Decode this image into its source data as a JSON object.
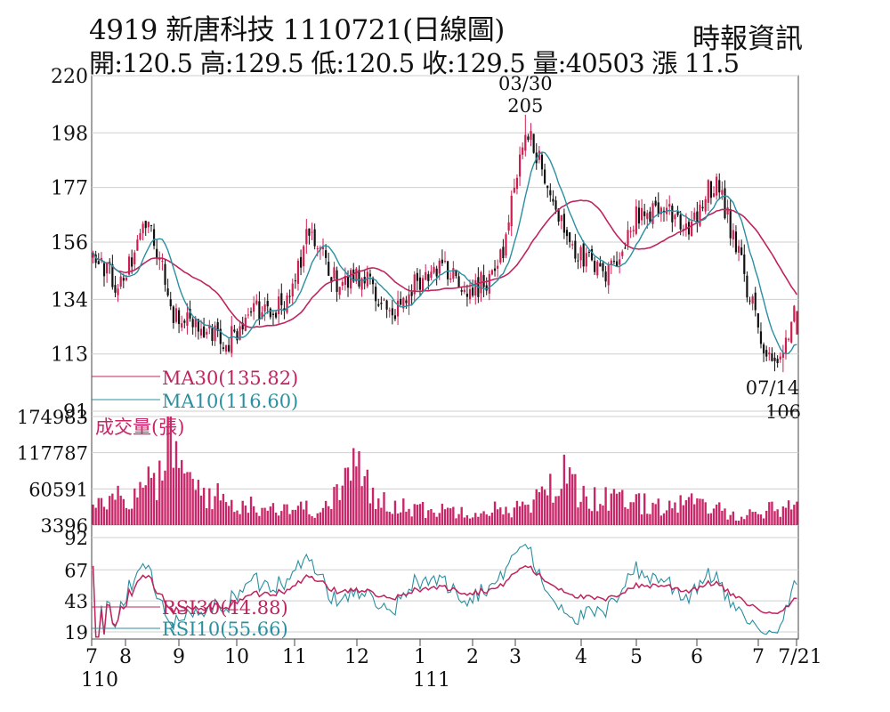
{
  "header": {
    "title": "4919  新唐科技 1110721(日線圖)",
    "quote": "開:120.5 高:129.5 低:120.5 收:129.5 量:40503 漲 11.5",
    "source": "時報資訊"
  },
  "colors": {
    "up": "#cc1f4f",
    "down": "#111111",
    "ma30": "#c0245e",
    "ma10": "#2a8fa0",
    "volume": "#c82668",
    "rsi30": "#c0245e",
    "rsi10": "#2a8fa0",
    "grid": "#cfcfcf",
    "frame": "#444444"
  },
  "chart_data": [
    {
      "type": "candlestick",
      "panel": "price",
      "y_ticks": [
        220,
        198,
        177,
        156,
        134,
        113,
        91
      ],
      "ylim": [
        91,
        220
      ],
      "grid": true,
      "x_ticks": [
        "7",
        "8",
        "9",
        "10",
        "11",
        "12",
        "1",
        "2",
        "3",
        "4",
        "5",
        "6",
        "7",
        "7/21"
      ],
      "x_tick_sublabels": [
        {
          "tick": "7",
          "text": "110"
        },
        {
          "tick": "1",
          "text": "111"
        }
      ],
      "legend": [
        {
          "name": "MA30",
          "value": "MA30(135.82)",
          "color": "#c0245e"
        },
        {
          "name": "MA10",
          "value": "MA10(116.60)",
          "color": "#2a8fa0"
        }
      ],
      "annotations": [
        {
          "date": "03/30",
          "value": 205,
          "label": "205",
          "kind": "high"
        },
        {
          "date": "07/14",
          "value": 106,
          "label": "106",
          "kind": "low"
        }
      ],
      "last_bar": {
        "open": 120.5,
        "high": 129.5,
        "low": 120.5,
        "close": 129.5,
        "volume": 40503,
        "change": 11.5
      },
      "close_anchors": [
        {
          "month": "110/07",
          "close": 150
        },
        {
          "month": "110/08",
          "close": 138
        },
        {
          "month": "110/09",
          "close": 165
        },
        {
          "month": "110/09b",
          "close": 128
        },
        {
          "month": "110/10",
          "close": 122
        },
        {
          "month": "110/10b",
          "close": 118
        },
        {
          "month": "110/11",
          "close": 130
        },
        {
          "month": "110/11b",
          "close": 132
        },
        {
          "month": "110/12",
          "close": 160
        },
        {
          "month": "110/12b",
          "close": 140
        },
        {
          "month": "111/01",
          "close": 144
        },
        {
          "month": "111/01b",
          "close": 125
        },
        {
          "month": "111/02",
          "close": 142
        },
        {
          "month": "111/02b",
          "close": 146
        },
        {
          "month": "111/03",
          "close": 138
        },
        {
          "month": "111/03b",
          "close": 146
        },
        {
          "month": "111/03/30",
          "close": 200
        },
        {
          "month": "111/04",
          "close": 172
        },
        {
          "month": "111/04b",
          "close": 150
        },
        {
          "month": "111/05",
          "close": 142
        },
        {
          "month": "111/05b",
          "close": 165
        },
        {
          "month": "111/06",
          "close": 170
        },
        {
          "month": "111/06b",
          "close": 162
        },
        {
          "month": "111/06c",
          "close": 180
        },
        {
          "month": "111/07",
          "close": 145
        },
        {
          "month": "111/07/14",
          "close": 108
        },
        {
          "month": "111/07/21",
          "close": 129.5
        }
      ]
    },
    {
      "type": "bar",
      "panel": "volume",
      "title": "成交量(張)",
      "y_ticks": [
        174983,
        117787,
        60591,
        3396
      ],
      "ylim": [
        3396,
        174983
      ],
      "grid": true,
      "volume_anchors": [
        {
          "at": 0.0,
          "v": 60000
        },
        {
          "at": 0.06,
          "v": 50000
        },
        {
          "at": 0.1,
          "v": 100000
        },
        {
          "at": 0.11,
          "v": 174983
        },
        {
          "at": 0.13,
          "v": 80000
        },
        {
          "at": 0.2,
          "v": 40000
        },
        {
          "at": 0.28,
          "v": 35000
        },
        {
          "at": 0.33,
          "v": 30000
        },
        {
          "at": 0.37,
          "v": 110000
        },
        {
          "at": 0.4,
          "v": 50000
        },
        {
          "at": 0.47,
          "v": 30000
        },
        {
          "at": 0.55,
          "v": 30000
        },
        {
          "at": 0.62,
          "v": 35000
        },
        {
          "at": 0.67,
          "v": 90000
        },
        {
          "at": 0.7,
          "v": 55000
        },
        {
          "at": 0.78,
          "v": 40000
        },
        {
          "at": 0.86,
          "v": 40000
        },
        {
          "at": 0.92,
          "v": 20000
        },
        {
          "at": 1.0,
          "v": 40503
        }
      ]
    },
    {
      "type": "line",
      "panel": "rsi",
      "y_ticks": [
        92,
        67,
        43,
        19
      ],
      "ylim": [
        19,
        92
      ],
      "grid": true,
      "series": [
        {
          "name": "RSI30",
          "legend": "RSI30(44.88)",
          "color": "#c0245e",
          "last": 44.88
        },
        {
          "name": "RSI10",
          "legend": "RSI10(55.66)",
          "color": "#2a8fa0",
          "last": 55.66
        }
      ]
    }
  ]
}
